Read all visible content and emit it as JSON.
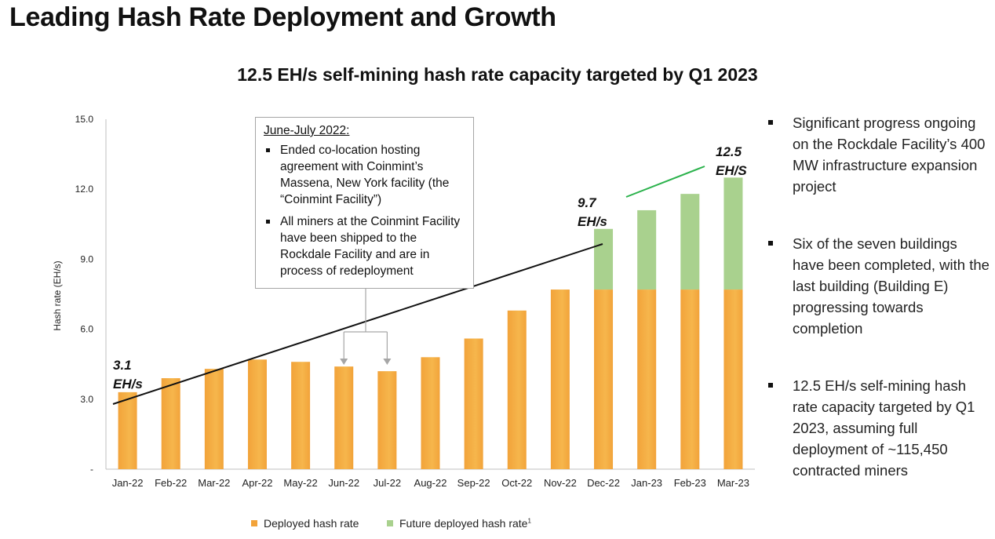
{
  "page": {
    "title": "Leading Hash Rate Deployment and Growth",
    "subtitle": "12.5 EH/s self-mining hash rate capacity targeted by Q1 2023"
  },
  "colors": {
    "deployed": "#f2a33a",
    "future": "#a9d18e",
    "trend": "#111111",
    "growth": "#2bb24c"
  },
  "callout": {
    "title": "June-July 2022:",
    "items": [
      "Ended co-location hosting agreement with Coinmint’s Massena, New York facility (the “Coinmint Facility”)",
      "All miners at the Coinmint Facility have been shipped to the Rockdale Facility and are in process of redeployment"
    ]
  },
  "bullets": [
    "Significant progress ongoing on the Rockdale Facility’s 400 MW infrastructure expansion project",
    "Six of the seven buildings have been completed, with the last building (Building E) progressing towards completion",
    "12.5 EH/s self-mining hash rate capacity targeted by Q1 2023, assuming full deployment of ~115,450 contracted miners"
  ],
  "chart_data": {
    "type": "bar",
    "stacked": true,
    "ylabel": "Hash rate (EH/s)",
    "ylim": [
      0,
      15
    ],
    "yticks": [
      "-",
      "3.0",
      "6.0",
      "9.0",
      "12.0",
      "15.0"
    ],
    "categories": [
      "Jan-22",
      "Feb-22",
      "Mar-22",
      "Apr-22",
      "May-22",
      "Jun-22",
      "Jul-22",
      "Aug-22",
      "Sep-22",
      "Oct-22",
      "Nov-22",
      "Dec-22",
      "Jan-23",
      "Feb-23",
      "Mar-23"
    ],
    "series": [
      {
        "name": "Deployed hash rate",
        "values": [
          3.3,
          3.9,
          4.3,
          4.7,
          4.6,
          4.4,
          4.2,
          4.8,
          5.6,
          6.8,
          7.7,
          7.7,
          7.7,
          7.7,
          7.7
        ]
      },
      {
        "name": "Future deployed hash rate",
        "values": [
          0,
          0,
          0,
          0,
          0,
          0,
          0,
          0,
          0,
          0,
          0,
          2.6,
          3.4,
          4.1,
          4.8
        ]
      }
    ],
    "legend_footnote": "1",
    "annotations": [
      {
        "line1": "3.1",
        "line2": "EH/s"
      },
      {
        "line1": "9.7",
        "line2": "EH/s"
      },
      {
        "line1": "12.5",
        "line2": "EH/S"
      }
    ]
  }
}
